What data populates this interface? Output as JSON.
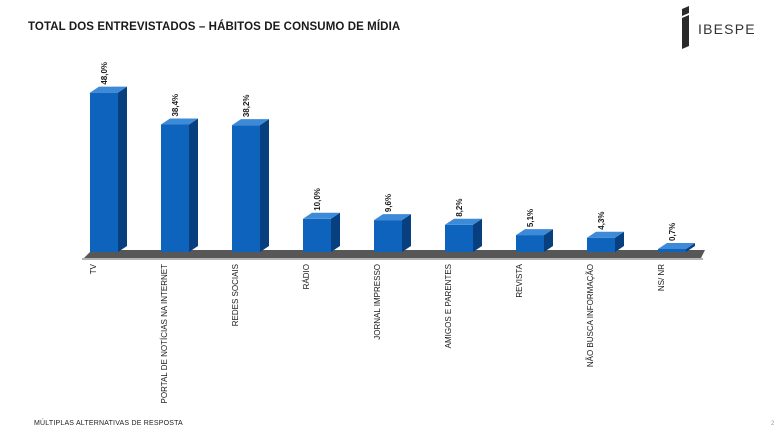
{
  "title": "TOTAL DOS ENTREVISTADOS – HÁBITOS DE CONSUMO DE MÍDIA",
  "logo": {
    "text": "IBESPE"
  },
  "footer": "MÚLTIPLAS ALTERNATIVAS DE RESPOSTA",
  "page_number": "2",
  "colors": {
    "bar_front": "#0e63bd",
    "bar_side": "#083f7e",
    "bar_top": "#3d8ad8",
    "floor": "#3a3a3a"
  },
  "chart_data": {
    "type": "bar",
    "title": "",
    "xlabel": "",
    "ylabel": "",
    "ylim": [
      0,
      50
    ],
    "grid": false,
    "legend": "none",
    "categories": [
      "TV",
      "PORTAL DE NOTÍCIAS NA INTERNET",
      "REDES SOCIAIS",
      "RÁDIO",
      "JORNAL IMPRESSO",
      "AMIGOS E PARENTES",
      "REVISTA",
      "NÃO BUSCA INFORMAÇÃO",
      "NS/ NR"
    ],
    "values": [
      48.0,
      38.4,
      38.2,
      10.0,
      9.6,
      8.2,
      5.1,
      4.3,
      0.7
    ],
    "value_labels": [
      "48,0%",
      "38,4%",
      "38,2%",
      "10,0%",
      "9,6%",
      "8,2%",
      "5,1%",
      "4,3%",
      "0,7%"
    ]
  }
}
